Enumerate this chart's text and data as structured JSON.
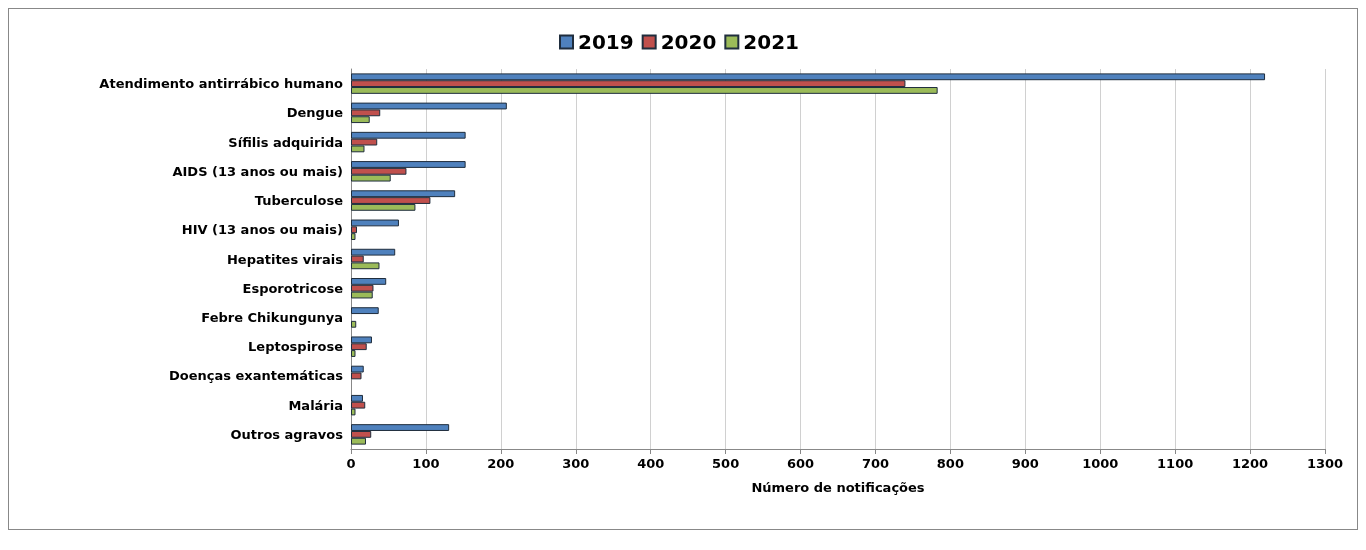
{
  "chart_data": {
    "type": "bar",
    "orientation": "horizontal",
    "xlabel": "Número de notificações",
    "categories": [
      "Atendimento antirrábico humano",
      "Dengue",
      "Sífilis adquirida",
      "AIDS (13 anos ou mais)",
      "Tuberculose",
      "HIV (13 anos ou mais)",
      "Hepatites virais",
      "Esporotricose",
      "Febre Chikungunya",
      "Leptospirose",
      "Doenças exantemáticas",
      "Malária",
      "Outros agravos"
    ],
    "series": [
      {
        "name": "2019",
        "color": "#4f81bd",
        "values": [
          1220,
          208,
          153,
          153,
          139,
          64,
          59,
          47,
          37,
          28,
          17,
          16,
          131
        ]
      },
      {
        "name": "2020",
        "color": "#c0504d",
        "values": [
          740,
          39,
          35,
          74,
          106,
          8,
          17,
          30,
          0,
          21,
          14,
          19,
          27
        ]
      },
      {
        "name": "2021",
        "color": "#9bbb59",
        "values": [
          783,
          25,
          18,
          53,
          86,
          6,
          38,
          29,
          7,
          6,
          0,
          6,
          20
        ]
      }
    ],
    "xlim": [
      0,
      1300
    ],
    "xticks": [
      0,
      100,
      200,
      300,
      400,
      500,
      600,
      700,
      800,
      900,
      1000,
      1100,
      1200,
      1300
    ],
    "grid": "x",
    "legend": "top"
  }
}
